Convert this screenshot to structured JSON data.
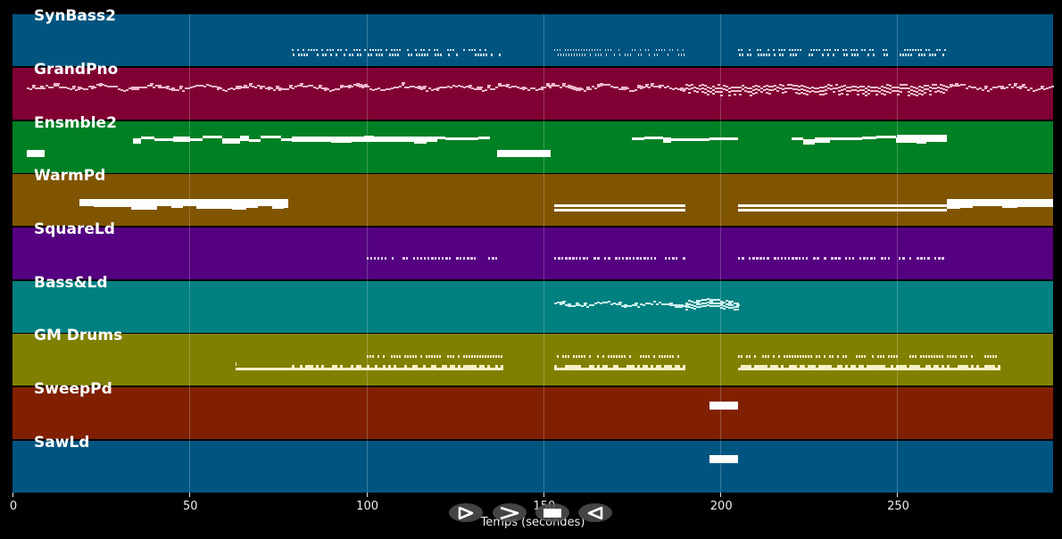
{
  "chart_data": {
    "type": "piano-roll",
    "title": "",
    "xlabel": "Temps (secondes)",
    "ylabel": "",
    "xlim": [
      0,
      294
    ],
    "xticks": [
      0,
      50,
      100,
      150,
      200,
      250
    ],
    "grid": true,
    "tracks": [
      {
        "name": "SynBass2",
        "color": "#005580",
        "note_color": "#cde3ee",
        "segments": [
          [
            79,
            138,
            "dense-short"
          ],
          [
            153,
            190,
            "dense-short"
          ],
          [
            205,
            264,
            "dense-short"
          ]
        ]
      },
      {
        "name": "GrandPno",
        "color": "#800033",
        "note_color": "#f0b8cc",
        "segments": [
          [
            4,
            190,
            "melodic"
          ],
          [
            190,
            264,
            "dense-chords"
          ],
          [
            264,
            294,
            "melodic"
          ]
        ]
      },
      {
        "name": "Ensmble2",
        "color": "#008025",
        "note_color": "#ffffff",
        "segments": [
          [
            4,
            9,
            "block"
          ],
          [
            34,
            135,
            "sustained"
          ],
          [
            137,
            152,
            "block"
          ],
          [
            175,
            205,
            "sustained"
          ],
          [
            220,
            264,
            "sustained"
          ]
        ]
      },
      {
        "name": "WarmPd",
        "color": "#805500",
        "note_color": "#ffffff",
        "segments": [
          [
            19,
            78,
            "pad"
          ],
          [
            153,
            190,
            "double-line"
          ],
          [
            205,
            264,
            "double-line"
          ],
          [
            264,
            294,
            "pad"
          ]
        ]
      },
      {
        "name": "SquareLd",
        "color": "#550080",
        "note_color": "#e8c8f5",
        "segments": [
          [
            100,
            138,
            "dotted"
          ],
          [
            153,
            190,
            "dotted"
          ],
          [
            205,
            264,
            "dotted"
          ]
        ]
      },
      {
        "name": "Bass&Ld",
        "color": "#008080",
        "note_color": "#c8f0ee",
        "segments": [
          [
            153,
            205,
            "melodic"
          ]
        ]
      },
      {
        "name": "GM Drums",
        "color": "#808000",
        "note_color": "#f5f0c8",
        "segments": [
          [
            63,
            138,
            "drums"
          ],
          [
            153,
            190,
            "drums"
          ],
          [
            205,
            279,
            "drums"
          ]
        ]
      },
      {
        "name": "SweepPd",
        "color": "#802000",
        "note_color": "#ffffff",
        "segments": [
          [
            197,
            205,
            "block"
          ]
        ]
      },
      {
        "name": "SawLd",
        "color": "#005580",
        "note_color": "#ffffff",
        "segments": [
          [
            197,
            205,
            "block"
          ]
        ]
      }
    ]
  },
  "axis": {
    "ticks": [
      "0",
      "50",
      "100",
      "150",
      "200",
      "250"
    ],
    "xlabel": "Temps (secondes)"
  },
  "controls": [
    {
      "name": "play-icon",
      "label": "play"
    },
    {
      "name": "fast-forward-icon",
      "label": "next"
    },
    {
      "name": "stop-icon",
      "label": "stop"
    },
    {
      "name": "rewind-icon",
      "label": "previous"
    }
  ]
}
